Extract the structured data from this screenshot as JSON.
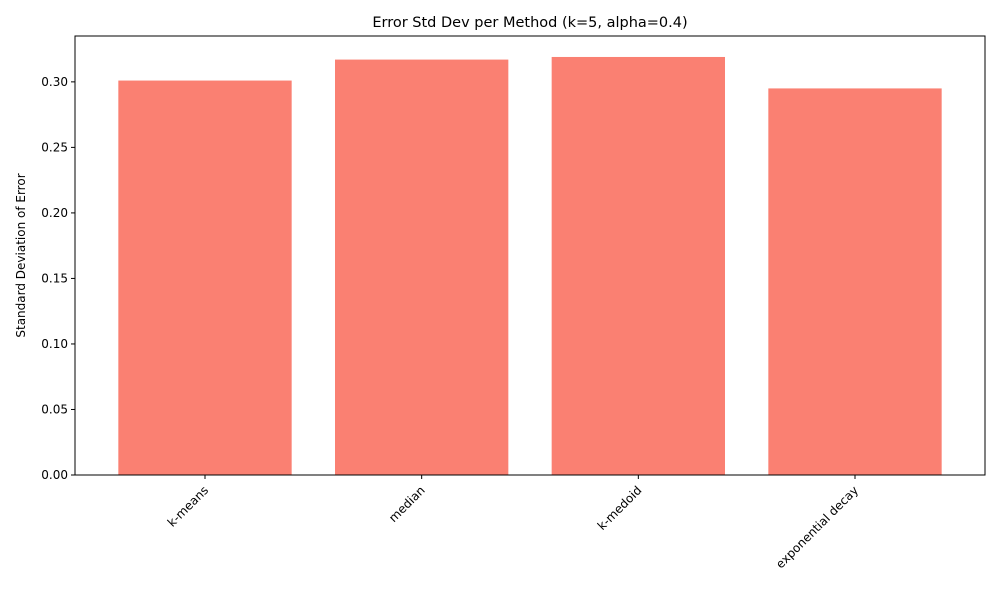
{
  "chart_data": {
    "type": "bar",
    "title": "Error Std Dev per Method (k=5, alpha=0.4)",
    "xlabel": "",
    "ylabel": "Standard Deviation of Error",
    "categories": [
      "k-means",
      "median",
      "k-medoid",
      "exponential decay"
    ],
    "values": [
      0.301,
      0.317,
      0.319,
      0.295
    ],
    "ylim": [
      0,
      0.335
    ],
    "yticks": [
      0.0,
      0.05,
      0.1,
      0.15,
      0.2,
      0.25,
      0.3
    ],
    "ytick_labels": [
      "0.00",
      "0.05",
      "0.10",
      "0.15",
      "0.20",
      "0.25",
      "0.30"
    ],
    "grid": false,
    "legend": "none",
    "bar_color": "#fa8072"
  }
}
